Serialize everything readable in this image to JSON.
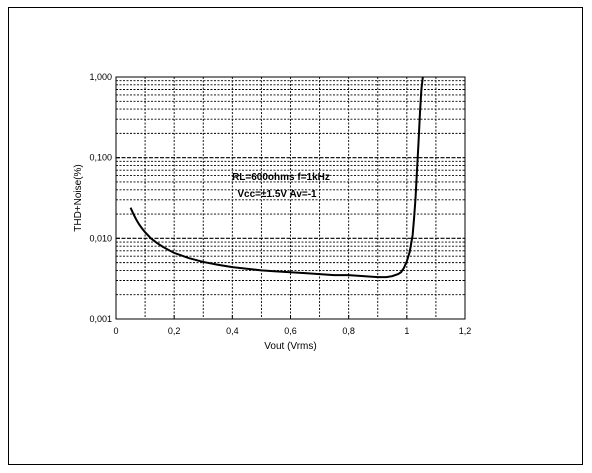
{
  "chart_data": {
    "type": "line",
    "title": "",
    "xlabel": "Vout (Vrms)",
    "ylabel": "THD+Noise(%)",
    "xlim": [
      0,
      1.2
    ],
    "ylim": [
      0.001,
      1.0
    ],
    "yscale": "log",
    "grid": true,
    "x_ticks": [
      "0",
      "0,2",
      "0,4",
      "0,6",
      "0,8",
      "1",
      "1,2"
    ],
    "y_ticks": [
      "0,001",
      "0,010",
      "0,100",
      "1,000"
    ],
    "annotations": [
      "RL=600ohms  f=1kHz",
      "Vcc=±1.5V  Av=-1"
    ],
    "line_color": "#000000",
    "series": [
      {
        "x": [
          0.05,
          0.06,
          0.07,
          0.08,
          0.09,
          0.1,
          0.12,
          0.14,
          0.16,
          0.18,
          0.2,
          0.25,
          0.3,
          0.35,
          0.4,
          0.45,
          0.5,
          0.55,
          0.6,
          0.65,
          0.7,
          0.75,
          0.8,
          0.85,
          0.9,
          0.93,
          0.95,
          0.97,
          0.98,
          0.99,
          1.0,
          1.01,
          1.02,
          1.025,
          1.03,
          1.035,
          1.04,
          1.045,
          1.05,
          1.055
        ],
        "y": [
          0.024,
          0.02,
          0.017,
          0.0148,
          0.0132,
          0.0119,
          0.01,
          0.0088,
          0.0079,
          0.0072,
          0.0066,
          0.0057,
          0.0051,
          0.0047,
          0.0044,
          0.0042,
          0.004,
          0.0039,
          0.0038,
          0.0037,
          0.0036,
          0.0035,
          0.0035,
          0.0034,
          0.0033,
          0.0033,
          0.0034,
          0.0036,
          0.0038,
          0.0043,
          0.0052,
          0.0068,
          0.011,
          0.018,
          0.032,
          0.07,
          0.15,
          0.35,
          0.7,
          1.0
        ]
      }
    ]
  }
}
